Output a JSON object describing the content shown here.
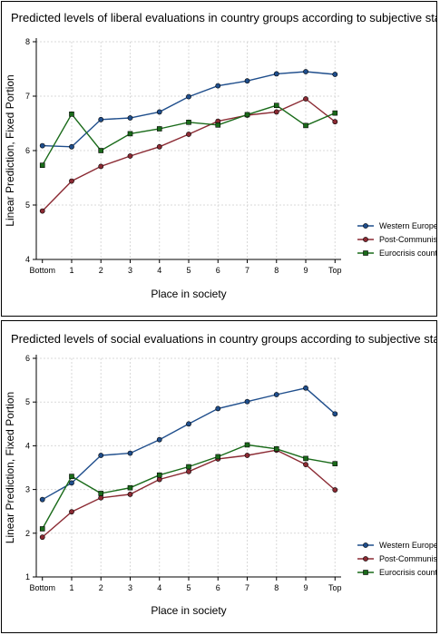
{
  "chart_data": [
    {
      "type": "line",
      "title": "Predicted levels of liberal evaluations in country groups according to subjective status",
      "xlabel": "Place in society",
      "ylabel": "Linear Prediction, Fixed Portion",
      "categories": [
        "Bottom",
        "1",
        "2",
        "3",
        "4",
        "5",
        "6",
        "7",
        "8",
        "9",
        "Top"
      ],
      "yticks": [
        "4",
        "5",
        "6",
        "7",
        "8"
      ],
      "ylim": [
        4,
        8
      ],
      "grid": true,
      "legend_position": "right",
      "series": [
        {
          "name": "Western Europe",
          "color": "#1f4e8c",
          "marker": "circle",
          "values": [
            6.09,
            6.07,
            6.57,
            6.6,
            6.71,
            6.99,
            7.19,
            7.28,
            7.41,
            7.45,
            7.4
          ]
        },
        {
          "name": "Post-Communist",
          "color": "#8b2a33",
          "marker": "circle",
          "values": [
            4.89,
            5.44,
            5.71,
            5.9,
            6.07,
            6.3,
            6.54,
            6.65,
            6.71,
            6.95,
            6.53
          ]
        },
        {
          "name": "Eurocrisis country",
          "color": "#1a6b1a",
          "marker": "square",
          "values": [
            5.73,
            6.67,
            6.0,
            6.31,
            6.4,
            6.52,
            6.47,
            6.66,
            6.83,
            6.46,
            6.69
          ]
        }
      ]
    },
    {
      "type": "line",
      "title": "Predicted levels of social evaluations in country groups according to subjective status",
      "xlabel": "Place in society",
      "ylabel": "Linear Prediction, Fixed Portion",
      "categories": [
        "Bottom",
        "1",
        "2",
        "3",
        "4",
        "5",
        "6",
        "7",
        "8",
        "9",
        "Top"
      ],
      "yticks": [
        "1",
        "2",
        "3",
        "4",
        "5",
        "6"
      ],
      "ylim": [
        1,
        6
      ],
      "grid": true,
      "legend_position": "right",
      "series": [
        {
          "name": "Western Europe",
          "color": "#1f4e8c",
          "marker": "circle",
          "values": [
            2.77,
            3.15,
            3.78,
            3.83,
            4.14,
            4.5,
            4.85,
            5.01,
            5.17,
            5.32,
            4.73
          ]
        },
        {
          "name": "Post-Communist",
          "color": "#8b2a33",
          "marker": "circle",
          "values": [
            1.91,
            2.49,
            2.81,
            2.89,
            3.23,
            3.41,
            3.7,
            3.78,
            3.9,
            3.57,
            2.99
          ]
        },
        {
          "name": "Eurocrisis country",
          "color": "#1a6b1a",
          "marker": "square",
          "values": [
            2.1,
            3.3,
            2.91,
            3.04,
            3.33,
            3.52,
            3.75,
            4.02,
            3.93,
            3.71,
            3.59
          ]
        }
      ]
    }
  ]
}
